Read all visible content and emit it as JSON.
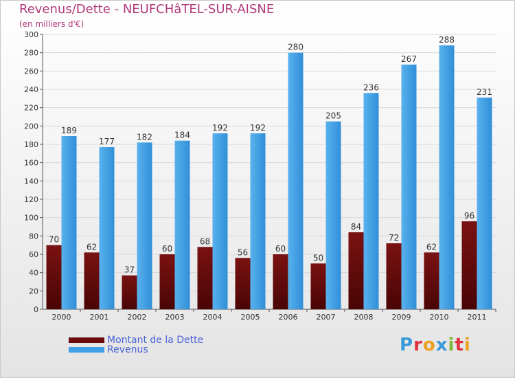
{
  "title": "Revenus/Dette - NEUFCHâTEL-SUR-AISNE",
  "subtitle": "(en milliers d'€)",
  "legend": {
    "debt_label": "Montant de la Dette",
    "revenue_label": "Revenus"
  },
  "logo": {
    "text": "Proxiti",
    "letters": [
      {
        "ch": "P",
        "color": "#3a9ad9"
      },
      {
        "ch": "r",
        "color": "#e0303a"
      },
      {
        "ch": "o",
        "color": "#f0a020"
      },
      {
        "ch": "x",
        "color": "#3a9ad9"
      },
      {
        "ch": "i",
        "color": "#7ab83a"
      },
      {
        "ch": "t",
        "color": "#e0303a"
      },
      {
        "ch": "i",
        "color": "#f0a020"
      }
    ]
  },
  "colors": {
    "debt": "#6b0a0a",
    "revenue": "#3fa0e6",
    "title": "#b03a7a",
    "legend_text": "#4a63d8"
  },
  "chart_data": {
    "type": "bar",
    "categories": [
      "2000",
      "2001",
      "2002",
      "2003",
      "2004",
      "2005",
      "2006",
      "2007",
      "2008",
      "2009",
      "2010",
      "2011"
    ],
    "series": [
      {
        "name": "Montant de la Dette",
        "values": [
          70,
          62,
          37,
          60,
          68,
          56,
          60,
          50,
          84,
          72,
          62,
          96
        ]
      },
      {
        "name": "Revenus",
        "values": [
          189,
          177,
          182,
          184,
          192,
          192,
          280,
          205,
          236,
          267,
          288,
          231
        ]
      }
    ],
    "ylim": [
      0,
      300
    ],
    "yticks": [
      0,
      20,
      40,
      60,
      80,
      100,
      120,
      140,
      160,
      180,
      200,
      220,
      240,
      260,
      280,
      300
    ],
    "grid": true,
    "legend_position": "bottom-left"
  }
}
